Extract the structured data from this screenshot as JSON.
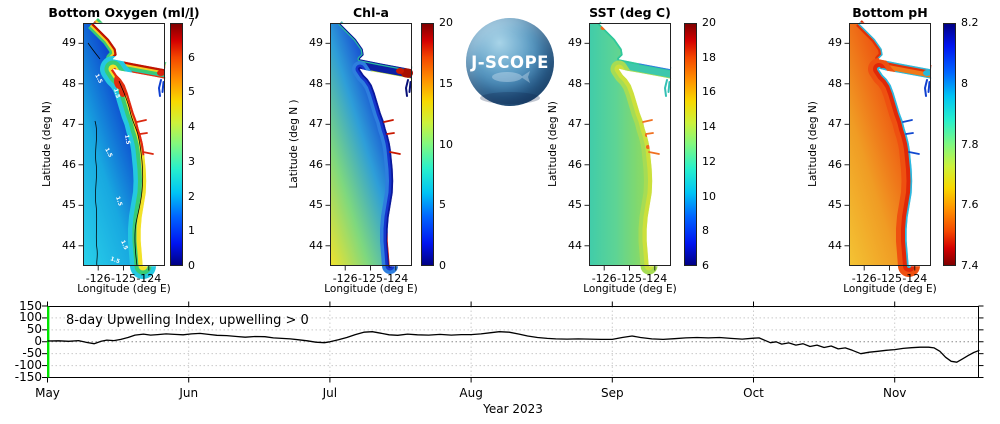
{
  "logo": {
    "text": "J-SCOPE"
  },
  "chart_data": [
    {
      "type": "heatmap",
      "id": "bottom-oxygen",
      "title": "Bottom Oxygen (ml/l)",
      "xlabel": "Longitude (deg E)",
      "ylabel": "Latitude (deg N)",
      "lon_ticks": [
        -126,
        -125,
        -124
      ],
      "lat_ticks": [
        49,
        48,
        47,
        46,
        45,
        44
      ],
      "colorbar": {
        "min": 0,
        "max": 7,
        "ticks": [
          0,
          1,
          2,
          3,
          4,
          5,
          6,
          7
        ],
        "colormap": "jet",
        "reversed": false
      },
      "contour_label": "1.5",
      "palette": {
        "ocean_stops": [
          "#2ad2ea",
          "#18a8e0",
          "#0c38cc",
          "#0a28c0"
        ],
        "coast_bands": [
          "#24c8e0",
          "#38cc74",
          "#f2e228"
        ],
        "coast_inner_n": "#e22810",
        "island_bands": [
          "#38cc74",
          "#f0d024",
          "#c01400"
        ],
        "strait": "#2cc89c",
        "straitS": "#e23010",
        "georgia": "#1040d0",
        "inlets": "#da2810",
        "coast_spot": "#e23010",
        "strait_spot": "#d82410"
      }
    },
    {
      "type": "heatmap",
      "id": "chl-a",
      "title": "Chl-a",
      "xlabel": "Longitude (deg E)",
      "ylabel": "Latitude (deg N )",
      "lon_ticks": [
        -126,
        -125,
        -124
      ],
      "lat_ticks": [
        49,
        48,
        47,
        46,
        45,
        44
      ],
      "colorbar": {
        "min": 0,
        "max": 20,
        "ticks": [
          0,
          5,
          10,
          15,
          20
        ],
        "colormap": "jet",
        "reversed": false
      },
      "palette": {
        "ocean_stops": [
          "#e8e232",
          "#7ed87e",
          "#2e9ed8",
          "#1238d0",
          "#0a1c9c"
        ],
        "coast_bands": [
          "#2e7ede",
          "#1535cc",
          "#0a189a"
        ],
        "island_bands": [
          "#28b89c",
          "#0a189a"
        ],
        "strait": "#0c20a4",
        "straitS": "#b8d830",
        "georgia": "#081078",
        "inlets": "#c81800",
        "south_strip": "#d81800",
        "coast_spot": "#c81800",
        "strait_spot": "#a81000"
      }
    },
    {
      "type": "heatmap",
      "id": "sst",
      "title": "SST (deg C)",
      "xlabel": "Longitude (deg E)",
      "ylabel": "Latitude (deg N)",
      "lon_ticks": [
        -126,
        -125,
        -124
      ],
      "lat_ticks": [
        49,
        48,
        47,
        46,
        45,
        44
      ],
      "colorbar": {
        "min": 6,
        "max": 20,
        "ticks": [
          6,
          8,
          10,
          12,
          14,
          16,
          18,
          20
        ],
        "colormap": "jet",
        "reversed": false
      },
      "palette": {
        "ocean_stops": [
          "#40ccaa",
          "#5ed494",
          "#8cda62",
          "#b4e04e"
        ],
        "coast_bands": [
          "#a6dc54",
          "#cce03c"
        ],
        "island_bands": [
          "#30c89c"
        ],
        "island_inner_n": "#2e7ede",
        "strait": "#3cc8ac",
        "straitS": "#a6dc54",
        "georgia": "#34c0b4",
        "inlets": "#f07020",
        "spots": "#f06818",
        "coast_spot": "#f0a020",
        "strait_spot": "#2e7ede"
      }
    },
    {
      "type": "heatmap",
      "id": "bottom-ph",
      "title": "Bottom pH",
      "xlabel": "Longitude (deg E)",
      "ylabel": "Latitude (deg N)",
      "lon_ticks": [
        -126,
        -125,
        -124
      ],
      "lat_ticks": [
        49,
        48,
        47,
        46,
        45,
        44
      ],
      "colorbar": {
        "min": 7.4,
        "max": 8.2,
        "ticks": [
          7.4,
          7.6,
          7.8,
          8,
          8.2
        ],
        "colormap": "jet",
        "reversed": true
      },
      "palette": {
        "ocean_stops": [
          "#f4c434",
          "#f09c24",
          "#ee5410",
          "#e42c0a"
        ],
        "coast_bands": [
          "#ee5010",
          "#e02808",
          "#2cb8e0"
        ],
        "island_bands": [
          "#e03008",
          "#30b8d8"
        ],
        "strait": "#f07818",
        "straitS": "#28b8d8",
        "georgia": "#1040d0",
        "inlets": "#1048d0",
        "coast_spot": "#30b8d8",
        "strait_spot": "#28b8d8"
      }
    },
    {
      "type": "line",
      "id": "upwelling-index",
      "annotation": "8-day Upwelling Index, upwelling > 0",
      "xlabel": "Year 2023",
      "x_tick_labels": [
        "May",
        "Jun",
        "Jul",
        "Aug",
        "Sep",
        "Oct",
        "Nov"
      ],
      "y_ticks": [
        150,
        100,
        50,
        0,
        -50,
        -100,
        -150
      ],
      "ylim": [
        -150,
        150
      ],
      "line_color": "#000000",
      "start_line_color": "#00e400",
      "zero_line_style": "dotted",
      "x_months": [
        0,
        0.08,
        0.15,
        0.22,
        0.28,
        0.33,
        0.38,
        0.42,
        0.47,
        0.52,
        0.57,
        0.62,
        0.68,
        0.73,
        0.78,
        0.84,
        0.9,
        0.96,
        1.02,
        1.08,
        1.14,
        1.2,
        1.27,
        1.34,
        1.4,
        1.47,
        1.54,
        1.6,
        1.66,
        1.72,
        1.78,
        1.84,
        1.9,
        1.96,
        2,
        2.06,
        2.12,
        2.18,
        2.24,
        2.3,
        2.36,
        2.42,
        2.48,
        2.55,
        2.62,
        2.7,
        2.78,
        2.86,
        2.93,
        3,
        3.07,
        3.14,
        3.2,
        3.27,
        3.34,
        3.4,
        3.47,
        3.54,
        3.6,
        3.68,
        3.76,
        3.84,
        3.92,
        4,
        4.07,
        4.14,
        4.2,
        4.28,
        4.36,
        4.44,
        4.52,
        4.6,
        4.68,
        4.76,
        4.84,
        4.92,
        5,
        5.04,
        5.08,
        5.12,
        5.16,
        5.2,
        5.25,
        5.3,
        5.35,
        5.4,
        5.45,
        5.5,
        5.55,
        5.6,
        5.65,
        5.7,
        5.76,
        5.82,
        5.88,
        5.94,
        6,
        6.06,
        6.12,
        6.18,
        6.24,
        6.28,
        6.32,
        6.36,
        6.4,
        6.44,
        6.48,
        6.52,
        6.56,
        6.6
      ],
      "y_values": [
        3,
        4,
        2,
        5,
        -3,
        -8,
        2,
        7,
        5,
        10,
        18,
        28,
        32,
        28,
        30,
        33,
        31,
        29,
        33,
        35,
        31,
        27,
        26,
        22,
        19,
        22,
        21,
        16,
        14,
        12,
        8,
        4,
        -2,
        -4,
        0,
        8,
        18,
        30,
        40,
        42,
        36,
        29,
        27,
        32,
        29,
        28,
        31,
        28,
        30,
        30,
        33,
        38,
        42,
        40,
        32,
        24,
        18,
        14,
        12,
        11,
        12,
        11,
        10,
        10,
        18,
        24,
        18,
        12,
        10,
        13,
        16,
        18,
        16,
        18,
        14,
        11,
        15,
        16,
        6,
        -4,
        0,
        -10,
        -5,
        -14,
        -8,
        -20,
        -14,
        -24,
        -18,
        -30,
        -26,
        -36,
        -50,
        -44,
        -40,
        -36,
        -33,
        -28,
        -25,
        -23,
        -23,
        -26,
        -40,
        -65,
        -82,
        -86,
        -72,
        -58,
        -45,
        -36
      ]
    }
  ]
}
